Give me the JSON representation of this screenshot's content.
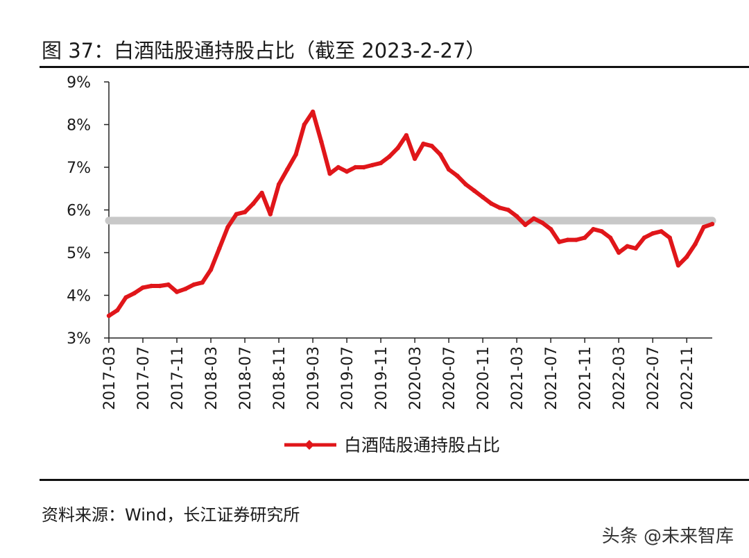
{
  "header": {
    "title": "图 37：白酒陆股通持股占比（截至 2023-2-27）"
  },
  "footer": {
    "source": "资料来源：Wind，长江证券研究所"
  },
  "watermark": {
    "text": "头条 @未来智库"
  },
  "chart_data": {
    "type": "line",
    "title": "",
    "xlabel": "",
    "ylabel": "",
    "ylim": [
      3,
      9
    ],
    "yticks": [
      "3%",
      "4%",
      "5%",
      "6%",
      "7%",
      "8%",
      "9%"
    ],
    "xticks": [
      "2017-03",
      "2017-07",
      "2017-11",
      "2018-03",
      "2018-07",
      "2018-11",
      "2019-03",
      "2019-07",
      "2019-11",
      "2020-03",
      "2020-07",
      "2020-11",
      "2021-03",
      "2021-07",
      "2021-11",
      "2022-03",
      "2022-07",
      "2022-11"
    ],
    "legend": {
      "position": "bottom",
      "label": "白酒陆股通持股占比"
    },
    "grid": false,
    "colors": {
      "series": "#e0161a",
      "reference_line": "#c8c8c8"
    },
    "reference_line": {
      "value": 5.75
    },
    "series": [
      {
        "name": "白酒陆股通持股占比",
        "points": [
          [
            "2017-03",
            3.52
          ],
          [
            "2017-04",
            3.65
          ],
          [
            "2017-05",
            3.95
          ],
          [
            "2017-06",
            4.05
          ],
          [
            "2017-07",
            4.18
          ],
          [
            "2017-08",
            4.22
          ],
          [
            "2017-09",
            4.22
          ],
          [
            "2017-10",
            4.25
          ],
          [
            "2017-11",
            4.08
          ],
          [
            "2017-12",
            4.15
          ],
          [
            "2018-01",
            4.25
          ],
          [
            "2018-02",
            4.3
          ],
          [
            "2018-03",
            4.6
          ],
          [
            "2018-04",
            5.1
          ],
          [
            "2018-05",
            5.6
          ],
          [
            "2018-06",
            5.9
          ],
          [
            "2018-07",
            5.95
          ],
          [
            "2018-08",
            6.15
          ],
          [
            "2018-09",
            6.4
          ],
          [
            "2018-10",
            5.9
          ],
          [
            "2018-11",
            6.6
          ],
          [
            "2018-12",
            6.95
          ],
          [
            "2019-01",
            7.3
          ],
          [
            "2019-02",
            8.0
          ],
          [
            "2019-03",
            8.3
          ],
          [
            "2019-04",
            7.6
          ],
          [
            "2019-05",
            6.85
          ],
          [
            "2019-06",
            7.0
          ],
          [
            "2019-07",
            6.9
          ],
          [
            "2019-08",
            7.0
          ],
          [
            "2019-09",
            7.0
          ],
          [
            "2019-10",
            7.05
          ],
          [
            "2019-11",
            7.1
          ],
          [
            "2019-12",
            7.25
          ],
          [
            "2020-01",
            7.45
          ],
          [
            "2020-02",
            7.75
          ],
          [
            "2020-03",
            7.2
          ],
          [
            "2020-04",
            7.55
          ],
          [
            "2020-05",
            7.5
          ],
          [
            "2020-06",
            7.3
          ],
          [
            "2020-07",
            6.95
          ],
          [
            "2020-08",
            6.8
          ],
          [
            "2020-09",
            6.6
          ],
          [
            "2020-10",
            6.45
          ],
          [
            "2020-11",
            6.3
          ],
          [
            "2020-12",
            6.15
          ],
          [
            "2021-01",
            6.05
          ],
          [
            "2021-02",
            6.0
          ],
          [
            "2021-03",
            5.85
          ],
          [
            "2021-04",
            5.65
          ],
          [
            "2021-05",
            5.8
          ],
          [
            "2021-06",
            5.7
          ],
          [
            "2021-07",
            5.55
          ],
          [
            "2021-08",
            5.25
          ],
          [
            "2021-09",
            5.3
          ],
          [
            "2021-10",
            5.3
          ],
          [
            "2021-11",
            5.35
          ],
          [
            "2021-12",
            5.55
          ],
          [
            "2022-01",
            5.5
          ],
          [
            "2022-02",
            5.35
          ],
          [
            "2022-03",
            5.0
          ],
          [
            "2022-04",
            5.15
          ],
          [
            "2022-05",
            5.1
          ],
          [
            "2022-06",
            5.35
          ],
          [
            "2022-07",
            5.45
          ],
          [
            "2022-08",
            5.5
          ],
          [
            "2022-09",
            5.35
          ],
          [
            "2022-10",
            4.7
          ],
          [
            "2022-11",
            4.9
          ],
          [
            "2022-12",
            5.2
          ],
          [
            "2023-01",
            5.6
          ],
          [
            "2023-02",
            5.67
          ]
        ]
      }
    ]
  }
}
